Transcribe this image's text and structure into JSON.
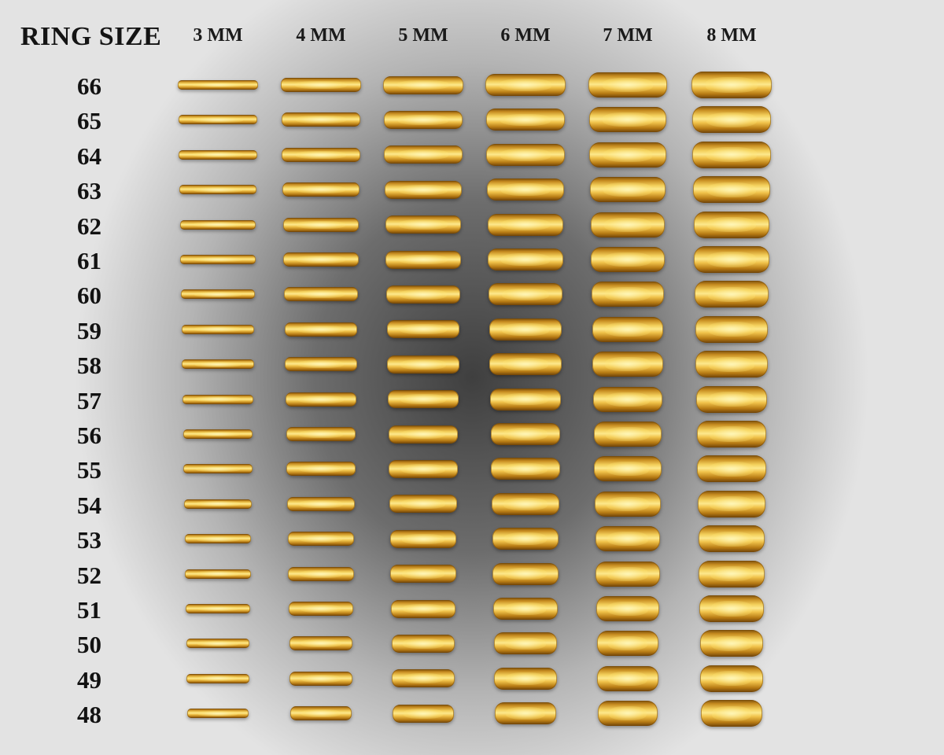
{
  "header": {
    "title": "RING SIZE",
    "widths": [
      "3 MM",
      "4 MM",
      "5 MM",
      "6 MM",
      "7 MM",
      "8 MM"
    ]
  },
  "sizes": [
    "66",
    "65",
    "64",
    "63",
    "62",
    "61",
    "60",
    "59",
    "58",
    "57",
    "56",
    "55",
    "54",
    "53",
    "52",
    "51",
    "50",
    "49",
    "48"
  ],
  "colors": {
    "ring_gold": "#f0c24a",
    "label_text": "#141414",
    "background_center": "#3f3f3f",
    "background_edge": "#e3e3e3"
  }
}
